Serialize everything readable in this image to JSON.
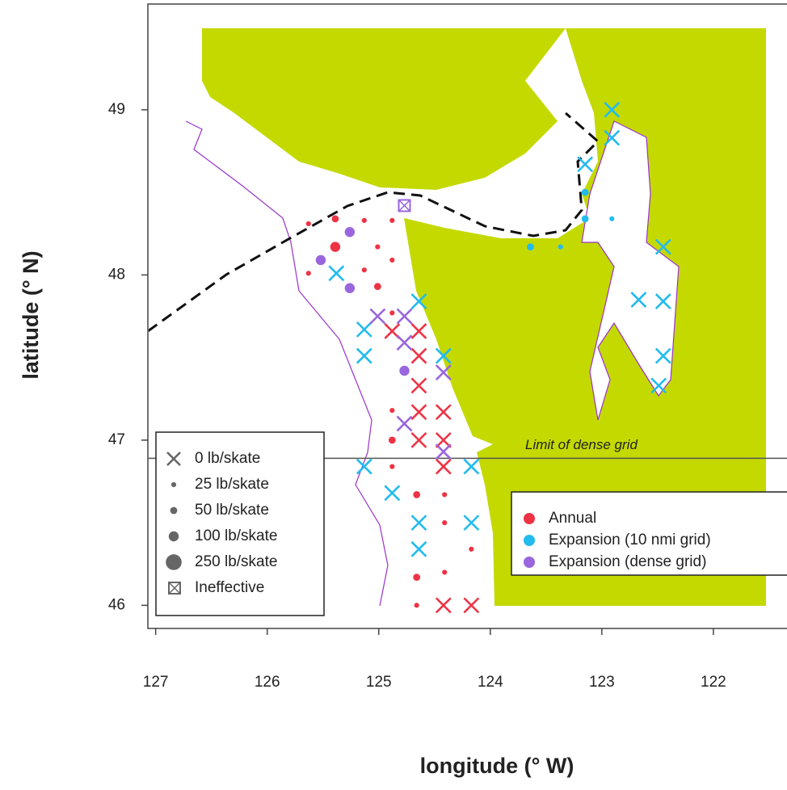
{
  "chart_data": {
    "type": "scatter",
    "xlabel": "longitude (° W)",
    "ylabel": "latitude (° N)",
    "xlim": [
      127.07,
      121.34
    ],
    "ylim": [
      45.86,
      49.64
    ],
    "xticks": [
      127,
      126,
      125,
      124,
      123,
      122
    ],
    "yticks": [
      46,
      47,
      48,
      49
    ],
    "reference_line": {
      "y": 46.89,
      "label": "Limit of dense grid"
    },
    "legend": "lower right",
    "size_legend_corner": "lower left",
    "size_legend": [
      {
        "value": 0,
        "label": "0 lb/skate"
      },
      {
        "value": 25,
        "label": "25 lb/skate"
      },
      {
        "value": 50,
        "label": "50 lb/skate"
      },
      {
        "value": 100,
        "label": "100 lb/skate"
      },
      {
        "value": 250,
        "label": "250 lb/skate"
      },
      {
        "label": "Ineffective"
      }
    ],
    "series": [
      {
        "name": "Annual",
        "color": "#ee3344",
        "x": [
          125.63,
          125.39,
          125.13,
          124.88,
          125.39,
          125.01,
          125.13,
          124.88,
          125.01,
          125.63,
          124.88,
          124.88,
          124.64,
          124.64,
          124.64,
          124.64,
          124.42,
          124.64,
          124.42,
          124.42,
          124.88,
          124.88,
          124.88,
          124.66,
          124.41,
          124.41,
          124.66,
          124.66,
          124.41,
          124.17,
          124.42,
          124.17
        ],
        "y": [
          48.31,
          48.34,
          48.33,
          48.33,
          48.17,
          48.17,
          48.03,
          48.09,
          47.93,
          48.01,
          47.77,
          47.66,
          47.66,
          47.51,
          47.33,
          47.17,
          47.17,
          47.0,
          47.0,
          46.84,
          47.0,
          47.18,
          46.84,
          46.67,
          46.67,
          46.5,
          46.17,
          46.0,
          46.2,
          46.34,
          46.0,
          46.0
        ],
        "catch": [
          25,
          50,
          25,
          25,
          100,
          25,
          25,
          25,
          50,
          25,
          25,
          0,
          0,
          0,
          0,
          0,
          0,
          0,
          0,
          0,
          50,
          25,
          25,
          50,
          25,
          25,
          50,
          25,
          25,
          25,
          0,
          0
        ]
      },
      {
        "name": "Expansion (10 nmi grid)",
        "color": "#22bbee",
        "x": [
          122.91,
          122.91,
          123.15,
          125.38,
          125.13,
          124.64,
          125.13,
          124.42,
          122.67,
          122.45,
          122.45,
          122.49,
          125.13,
          124.88,
          124.17,
          124.64,
          124.64,
          124.17,
          122.45,
          123.15,
          123.15,
          122.91,
          123.64,
          123.37
        ],
        "y": [
          49.0,
          48.83,
          48.67,
          48.01,
          47.67,
          47.84,
          47.51,
          47.51,
          47.85,
          47.84,
          47.51,
          47.33,
          46.84,
          46.68,
          46.84,
          46.5,
          46.34,
          46.5,
          48.17,
          48.5,
          48.34,
          48.34,
          48.17,
          48.17
        ],
        "catch": [
          0,
          0,
          0,
          0,
          0,
          0,
          0,
          0,
          0,
          0,
          0,
          0,
          0,
          0,
          0,
          0,
          0,
          0,
          0,
          50,
          50,
          25,
          50,
          25
        ]
      },
      {
        "name": "Expansion (dense grid)",
        "color": "#9966dd",
        "x": [
          125.26,
          125.52,
          125.26,
          124.77,
          125.01,
          124.77,
          124.77,
          124.42,
          124.77,
          124.42,
          124.77
        ],
        "y": [
          48.26,
          48.09,
          47.92,
          47.42,
          47.75,
          47.75,
          47.59,
          47.41,
          47.1,
          46.93,
          48.42
        ],
        "catch": [
          100,
          100,
          100,
          100,
          0,
          0,
          0,
          0,
          0,
          0,
          null
        ]
      }
    ]
  }
}
